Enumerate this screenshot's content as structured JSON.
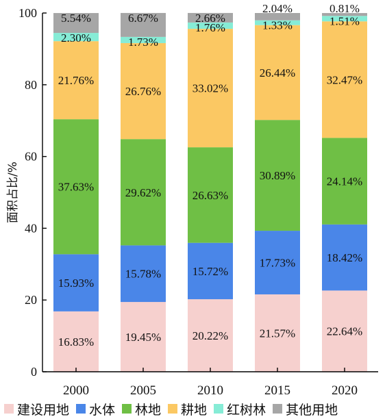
{
  "chart_data": {
    "type": "bar",
    "stacked": true,
    "title": "",
    "xlabel": "",
    "ylabel": "面积占比/%",
    "ylim": [
      0,
      100
    ],
    "yticks": [
      "0",
      "20",
      "40",
      "60",
      "80",
      "100"
    ],
    "categories": [
      "2000",
      "2005",
      "2010",
      "2015",
      "2020"
    ],
    "series": [
      {
        "name": "建设用地",
        "color": "#f6d0ce",
        "values": [
          16.83,
          19.45,
          20.22,
          21.57,
          22.64
        ],
        "labels": [
          "16.83%",
          "19.45%",
          "20.22%",
          "21.57%",
          "22.64%"
        ]
      },
      {
        "name": "水体",
        "color": "#4a86e8",
        "values": [
          15.93,
          15.78,
          15.72,
          17.73,
          18.42
        ],
        "labels": [
          "15.93%",
          "15.78%",
          "15.72%",
          "17.73%",
          "18.42%"
        ]
      },
      {
        "name": "林地",
        "color": "#6fbf45",
        "values": [
          37.63,
          29.62,
          26.63,
          30.89,
          24.14
        ],
        "labels": [
          "37.63%",
          "29.62%",
          "26.63%",
          "30.89%",
          "24.14%"
        ]
      },
      {
        "name": "耕地",
        "color": "#fbc863",
        "values": [
          21.76,
          26.76,
          33.02,
          26.44,
          32.47
        ],
        "labels": [
          "21.76%",
          "26.76%",
          "33.02%",
          "26.44%",
          "32.47%"
        ]
      },
      {
        "name": "红树林",
        "color": "#86ecd6",
        "values": [
          2.3,
          1.73,
          1.76,
          1.33,
          1.51
        ],
        "labels": [
          "2.30%",
          "1.73%",
          "1.76%",
          "1.33%",
          "1.51%"
        ]
      },
      {
        "name": "其他用地",
        "color": "#a6a6a6",
        "values": [
          5.54,
          6.67,
          2.66,
          2.04,
          0.81
        ],
        "labels": [
          "5.54%",
          "6.67%",
          "2.66%",
          "2.04%",
          "0.81%"
        ]
      }
    ],
    "legend_position": "bottom",
    "grid": false
  }
}
